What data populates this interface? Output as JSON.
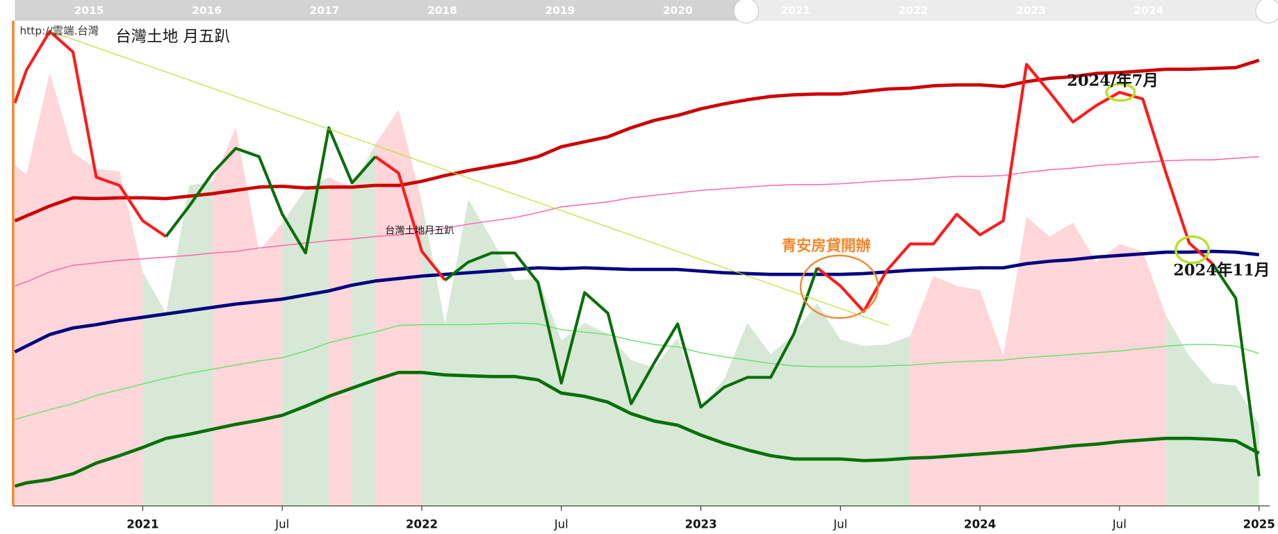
{
  "chart_data": {
    "type": "line",
    "title": "台灣土地 月五趴",
    "source": "http://雲端.台灣",
    "series_label": "台灣土地月五趴",
    "annotations": [
      {
        "text": "青安房貸開辦",
        "color": "#f5862a"
      },
      {
        "text": "2024/年7月",
        "color": "#111111"
      },
      {
        "text": "2024年11月",
        "color": "#111111"
      }
    ],
    "navigator": {
      "labels": [
        "2015",
        "2016",
        "2017",
        "2018",
        "2019",
        "2020",
        "2021",
        "2022",
        "2023",
        "2024"
      ]
    },
    "x": [
      -5.5,
      -5,
      -4,
      -3,
      -2,
      -1,
      0,
      1,
      2,
      3,
      4,
      5,
      6,
      7,
      8,
      9,
      10,
      11,
      12,
      13,
      14,
      15,
      16,
      17,
      18,
      19,
      20,
      21,
      22,
      23,
      24,
      25,
      26,
      27,
      28,
      29,
      30,
      31,
      32,
      33,
      34,
      35,
      36,
      37,
      38,
      39,
      40,
      41,
      42,
      43,
      44,
      45,
      46,
      47,
      48
    ],
    "xlim": [
      -5.5,
      48
    ],
    "xticks": [
      {
        "value": 0,
        "label": "2021"
      },
      {
        "value": 6,
        "label": "Jul"
      },
      {
        "value": 12,
        "label": "2022"
      },
      {
        "value": 18,
        "label": "Jul"
      },
      {
        "value": 24,
        "label": "2023"
      },
      {
        "value": 30,
        "label": "Jul"
      },
      {
        "value": 36,
        "label": "2024"
      },
      {
        "value": 42,
        "label": "Jul"
      },
      {
        "value": 48,
        "label": "2025"
      }
    ],
    "ylim": [
      0,
      589
    ],
    "area": {
      "values": [
        414,
        402,
        526,
        429,
        409,
        406,
        284,
        234,
        389,
        394,
        459,
        309,
        344,
        384,
        399,
        386,
        439,
        481,
        369,
        221,
        372,
        324,
        274,
        276,
        201,
        222,
        209,
        177,
        168,
        204,
        119,
        154,
        222,
        184,
        209,
        246,
        202,
        194,
        196,
        206,
        279,
        267,
        262,
        182,
        351,
        327,
        344,
        296,
        318,
        309,
        231,
        182,
        149,
        146,
        99
      ],
      "regions": [
        {
          "from": -5.5,
          "to": 0,
          "color": "#ffd6d9"
        },
        {
          "from": 0,
          "to": 3,
          "color": "#d7e8d7"
        },
        {
          "from": 3,
          "to": 6,
          "color": "#ffd6d9"
        },
        {
          "from": 6,
          "to": 8,
          "color": "#d7e8d7"
        },
        {
          "from": 8,
          "to": 9,
          "color": "#ffd6d9"
        },
        {
          "from": 9,
          "to": 10,
          "color": "#d7e8d7"
        },
        {
          "from": 10,
          "to": 12,
          "color": "#ffd6d9"
        },
        {
          "from": 12,
          "to": 33,
          "color": "#d7e8d7"
        },
        {
          "from": 33,
          "to": 44,
          "color": "#ffd6d9"
        },
        {
          "from": 44,
          "to": 48,
          "color": "#d7e8d7"
        }
      ]
    },
    "series": [
      {
        "color": "#ff5fa8",
        "width": 1.2,
        "values": [
          267,
          272,
          284,
          292,
          295,
          298,
          300,
          302,
          304,
          307,
          309,
          313,
          316,
          319,
          322,
          324,
          327,
          329,
          332,
          337,
          342,
          346,
          350,
          356,
          363,
          366,
          369,
          374,
          377,
          380,
          383,
          385,
          387,
          389,
          390,
          390,
          391,
          393,
          395,
          396,
          398,
          400,
          400,
          401,
          405,
          408,
          410,
          413,
          415,
          417,
          419,
          420,
          420,
          422,
          424
        ]
      },
      {
        "color": "#66e066",
        "width": 1.2,
        "values": [
          105,
          109,
          117,
          124,
          134,
          141,
          148,
          155,
          161,
          166,
          171,
          176,
          180,
          188,
          198,
          205,
          211,
          219,
          220,
          220,
          220,
          221,
          222,
          221,
          214,
          211,
          208,
          201,
          196,
          193,
          186,
          181,
          177,
          173,
          170,
          169,
          169,
          169,
          170,
          171,
          173,
          175,
          176,
          177,
          180,
          182,
          184,
          186,
          188,
          191,
          194,
          196,
          196,
          194,
          185
        ]
      },
      {
        "color": "#cc0000",
        "width": 4,
        "values": [
          346,
          352,
          364,
          374,
          373,
          374,
          374,
          373,
          376,
          379,
          383,
          387,
          388,
          386,
          387,
          387,
          389,
          389,
          394,
          401,
          407,
          412,
          417,
          424,
          436,
          442,
          448,
          459,
          468,
          474,
          482,
          488,
          493,
          497,
          499,
          500,
          500,
          503,
          506,
          507,
          510,
          511,
          511,
          509,
          515,
          519,
          521,
          525,
          526,
          528,
          530,
          530,
          531,
          532,
          541
        ]
      },
      {
        "color": "#000080",
        "width": 4,
        "values": [
          187,
          194,
          208,
          216,
          220,
          225,
          229,
          233,
          237,
          241,
          245,
          248,
          251,
          256,
          261,
          268,
          273,
          276,
          279,
          281,
          283,
          285,
          287,
          289,
          288,
          289,
          288,
          287,
          287,
          287,
          285,
          283,
          282,
          281,
          281,
          281,
          281,
          282,
          284,
          286,
          287,
          288,
          289,
          289,
          294,
          297,
          299,
          302,
          304,
          306,
          308,
          308,
          309,
          308,
          305
        ]
      },
      {
        "color": "#087008",
        "width": 4,
        "values": [
          24,
          28,
          32,
          39,
          52,
          61,
          71,
          82,
          87,
          93,
          99,
          104,
          110,
          121,
          133,
          143,
          153,
          162,
          162,
          159,
          158,
          157,
          157,
          153,
          137,
          133,
          126,
          112,
          103,
          98,
          86,
          76,
          68,
          61,
          57,
          57,
          57,
          55,
          56,
          58,
          59,
          61,
          63,
          65,
          67,
          70,
          73,
          75,
          78,
          80,
          82,
          82,
          81,
          79,
          64
        ]
      },
      {
        "color": "#ff1a1a",
        "width": 3.5,
        "values": [
          489,
          529,
          576,
          551,
          399,
          389,
          346,
          327,
          null,
          null,
          null,
          null,
          null,
          null,
          null,
          null,
          424,
          404,
          309,
          274,
          null,
          null,
          null,
          null,
          null,
          null,
          null,
          null,
          null,
          null,
          null,
          null,
          null,
          null,
          null,
          289,
          267,
          236,
          286,
          318,
          318,
          354,
          329,
          346,
          536,
          502,
          466,
          486,
          502,
          494,
          404,
          319,
          294,
          null,
          null
        ]
      },
      {
        "color": "#0a6e0a",
        "width": 3.5,
        "values": [
          null,
          null,
          null,
          null,
          null,
          null,
          null,
          327,
          364,
          404,
          434,
          424,
          354,
          307,
          459,
          392,
          424,
          null,
          null,
          274,
          296,
          307,
          307,
          271,
          149,
          259,
          234,
          124,
          174,
          221,
          120,
          144,
          156,
          156,
          209,
          289,
          null,
          null,
          null,
          null,
          null,
          null,
          null,
          null,
          null,
          null,
          null,
          null,
          null,
          null,
          null,
          null,
          294,
          252,
          36
        ]
      }
    ]
  }
}
